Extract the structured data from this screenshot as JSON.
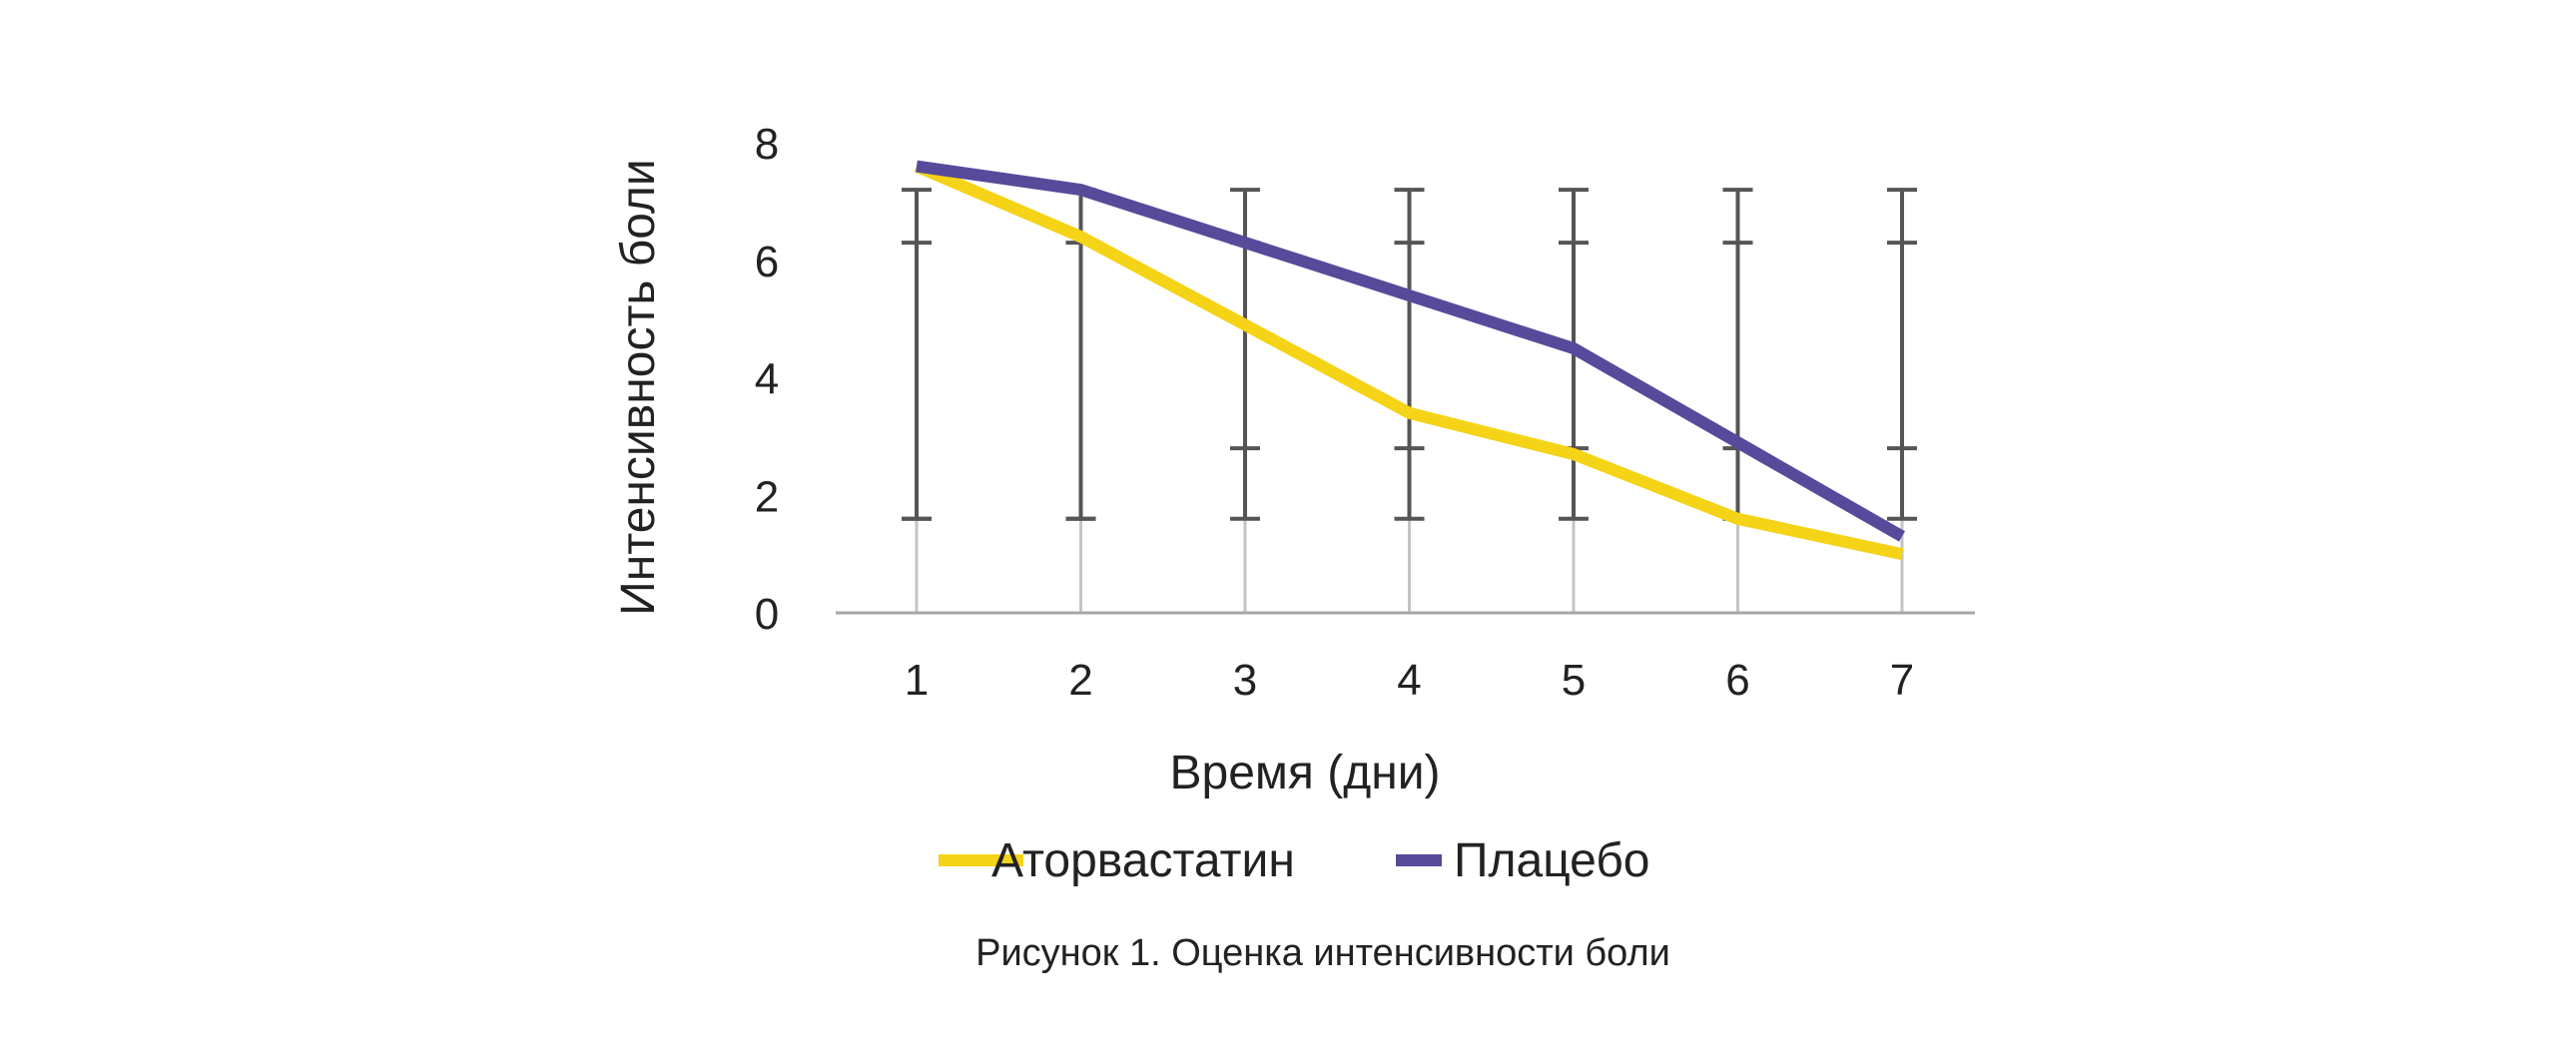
{
  "chart_data": {
    "type": "line",
    "categories": [
      "1",
      "2",
      "3",
      "4",
      "5",
      "6",
      "7"
    ],
    "xlabel": "Время (дни)",
    "ylabel": "Интенсивность боли",
    "ylim": [
      0,
      8
    ],
    "yticks": [
      "0",
      "2",
      "4",
      "6",
      "8"
    ],
    "grid": false,
    "legend_position": "bottom",
    "series": [
      {
        "name": "Аторвастатин",
        "color": "#F5D316",
        "values": [
          7.6,
          6.4,
          4.9,
          3.4,
          2.7,
          1.6,
          1.0
        ],
        "error_low": [
          1.6,
          1.6,
          1.6,
          1.6,
          1.6,
          1.6,
          1.6
        ],
        "error_high": [
          7.2,
          6.3,
          6.3,
          6.3,
          6.3,
          6.3,
          6.3
        ]
      },
      {
        "name": "Плацебо",
        "color": "#574A9A",
        "values": [
          7.6,
          7.2,
          6.3,
          5.4,
          4.5,
          2.9,
          1.3
        ],
        "error_low": [
          1.6,
          1.6,
          2.8,
          2.8,
          2.8,
          2.8,
          2.8
        ],
        "error_high": [
          6.3,
          7.2,
          7.2,
          7.2,
          7.2,
          7.2,
          7.2
        ]
      }
    ],
    "error_bar_color": "#555555"
  },
  "caption": "Рисунок 1. Оценка интенсивности боли"
}
